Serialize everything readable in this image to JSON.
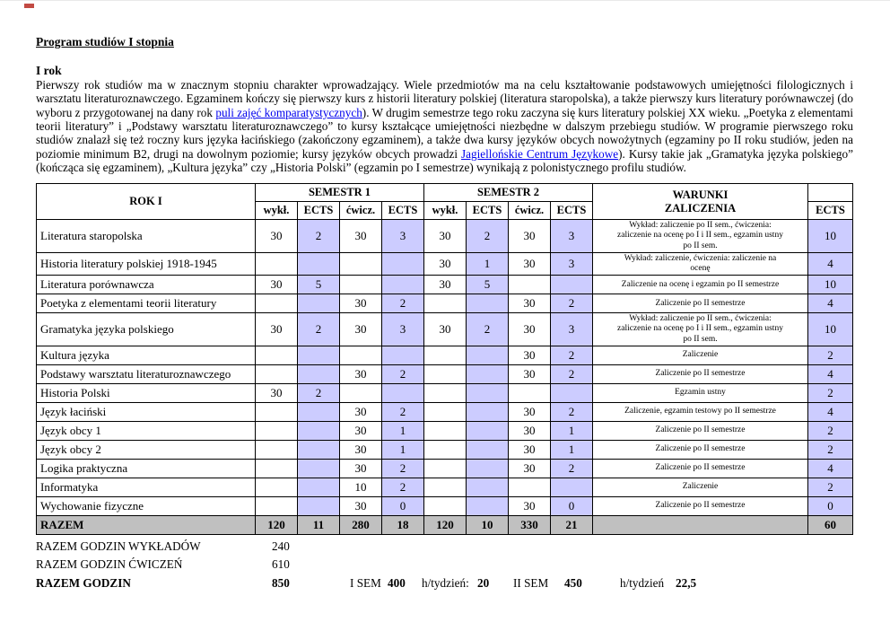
{
  "doc": {
    "title": "Program studiów I stopnia",
    "section_heading": "I rok"
  },
  "colors": {
    "ects_column": "#ccccff",
    "totals_row": "#c0c0c0",
    "link": "#0000ee"
  },
  "intro": {
    "segments": [
      {
        "link": false,
        "text": "Pierwszy rok studiów ma w znacznym stopniu charakter wprowadzający. Wiele przedmiotów ma na celu kształtowanie podstawowych umiejętności filologicznych i warsztatu literaturoznawczego. Egzaminem kończy się pierwszy kurs z historii literatury polskiej (literatura staropolska), a także pierwszy kurs literatury porównawczej (do wyboru z przygotowanej na dany rok "
      },
      {
        "link": true,
        "text": "puli zajęć komparatystycznych"
      },
      {
        "link": false,
        "text": "). W drugim semestrze tego roku zaczyna się kurs literatury polskiej XX wieku. „Poetyka z elementami teorii literatury” i „Podstawy warsztatu literaturoznawczego” to kursy kształcące umiejętności niezbędne w dalszym przebiegu studiów. W programie pierwszego roku studiów znalazł się też roczny kurs języka łacińskiego (zakończony egzaminem), a także dwa kursy języków obcych nowożytnych (egzaminy po II roku studiów, jeden na poziomie minimum B2, drugi na dowolnym poziomie; kursy języków obcych prowadzi "
      },
      {
        "link": true,
        "text": "Jagiellońskie Centrum Językowe"
      },
      {
        "link": false,
        "text": "). Kursy takie jak „Gramatyka języka polskiego” (kończąca się egzaminem), „Kultura języka” czy „Historia Polski” (egzamin po I semestrze) wynikają z polonistycznego profilu studiów."
      }
    ]
  },
  "table": {
    "header": {
      "rok": "ROK I",
      "semestr1": "SEMESTR 1",
      "semestr2": "SEMESTR 2",
      "warunki": "WARUNKI\nZALICZENIA",
      "wykl": "wykł.",
      "cwicz": "ćwicz.",
      "ects": "ECTS"
    },
    "rows": [
      {
        "name": "Literatura staropolska",
        "values": [
          "30",
          "2",
          "30",
          "3",
          "30",
          "2",
          "30",
          "3"
        ],
        "conditions": "Wykład: zaliczenie po II sem., ćwiczenia: zaliczenie na ocenę po I i II sem., egzamin ustny po II sem.",
        "ects": "10"
      },
      {
        "name": "Historia literatury polskiej 1918-1945",
        "values": [
          "",
          "",
          "",
          "",
          "30",
          "1",
          "30",
          "3"
        ],
        "conditions": "Wykład: zaliczenie, ćwiczenia: zaliczenie na ocenę",
        "ects": "4"
      },
      {
        "name": "Literatura porównawcza",
        "values": [
          "30",
          "5",
          "",
          "",
          "30",
          "5",
          "",
          ""
        ],
        "conditions": "Zaliczenie na ocenę i egzamin po II semestrze",
        "ects": "10"
      },
      {
        "name": "Poetyka z elementami teorii literatury",
        "values": [
          "",
          "",
          "30",
          "2",
          "",
          "",
          "30",
          "2"
        ],
        "conditions": "Zaliczenie po II semestrze",
        "ects": "4"
      },
      {
        "name": "Gramatyka języka polskiego",
        "values": [
          "30",
          "2",
          "30",
          "3",
          "30",
          "2",
          "30",
          "3"
        ],
        "conditions": "Wykład: zaliczenie po II sem., ćwiczenia: zaliczenie na ocenę po I i II sem., egzamin ustny po II sem.",
        "ects": "10"
      },
      {
        "name": "Kultura języka",
        "values": [
          "",
          "",
          "",
          "",
          "",
          "",
          "30",
          "2"
        ],
        "conditions": "Zaliczenie",
        "ects": "2"
      },
      {
        "name": "Podstawy warsztatu literaturoznawczego",
        "values": [
          "",
          "",
          "30",
          "2",
          "",
          "",
          "30",
          "2"
        ],
        "conditions": "Zaliczenie po II semestrze",
        "ects": "4"
      },
      {
        "name": "Historia Polski",
        "values": [
          "30",
          "2",
          "",
          "",
          "",
          "",
          "",
          ""
        ],
        "conditions": "Egzamin ustny",
        "ects": "2"
      },
      {
        "name": "Język łaciński",
        "values": [
          "",
          "",
          "30",
          "2",
          "",
          "",
          "30",
          "2"
        ],
        "conditions": "Zaliczenie, egzamin testowy po II semestrze",
        "ects": "4"
      },
      {
        "name": "Język obcy 1",
        "values": [
          "",
          "",
          "30",
          "1",
          "",
          "",
          "30",
          "1"
        ],
        "conditions": "Zaliczenie po II semestrze",
        "ects": "2"
      },
      {
        "name": "Język obcy 2",
        "values": [
          "",
          "",
          "30",
          "1",
          "",
          "",
          "30",
          "1"
        ],
        "conditions": "Zaliczenie po II semestrze",
        "ects": "2"
      },
      {
        "name": "Logika praktyczna",
        "values": [
          "",
          "",
          "30",
          "2",
          "",
          "",
          "30",
          "2"
        ],
        "conditions": "Zaliczenie po II semestrze",
        "ects": "4"
      },
      {
        "name": "Informatyka",
        "values": [
          "",
          "",
          "10",
          "2",
          "",
          "",
          "",
          ""
        ],
        "conditions": "Zaliczenie",
        "ects": "2"
      },
      {
        "name": "Wychowanie fizyczne",
        "values": [
          "",
          "",
          "30",
          "0",
          "",
          "",
          "30",
          "0"
        ],
        "conditions": "Zaliczenie po II semestrze",
        "ects": "0"
      }
    ],
    "totals_row": {
      "label": "RAZEM",
      "values": [
        "120",
        "11",
        "280",
        "18",
        "120",
        "10",
        "330",
        "21"
      ],
      "conditions": "",
      "ects": "60"
    }
  },
  "totals": {
    "lectures_label": "RAZEM GODZIN WYKŁADÓW",
    "lectures_value": "240",
    "exercises_label": "RAZEM GODZIN ĆWICZEŃ",
    "exercises_value": "610",
    "total_label": "RAZEM GODZIN",
    "total_value": "850",
    "sem1_label": "I SEM",
    "sem1_value": "400",
    "per_week_label1": "h/tydzień:",
    "sem1_per_week": "20",
    "sem2_label": "II SEM",
    "sem2_value": "450",
    "per_week_label2": "h/tydzień",
    "sem2_per_week": "22,5"
  }
}
